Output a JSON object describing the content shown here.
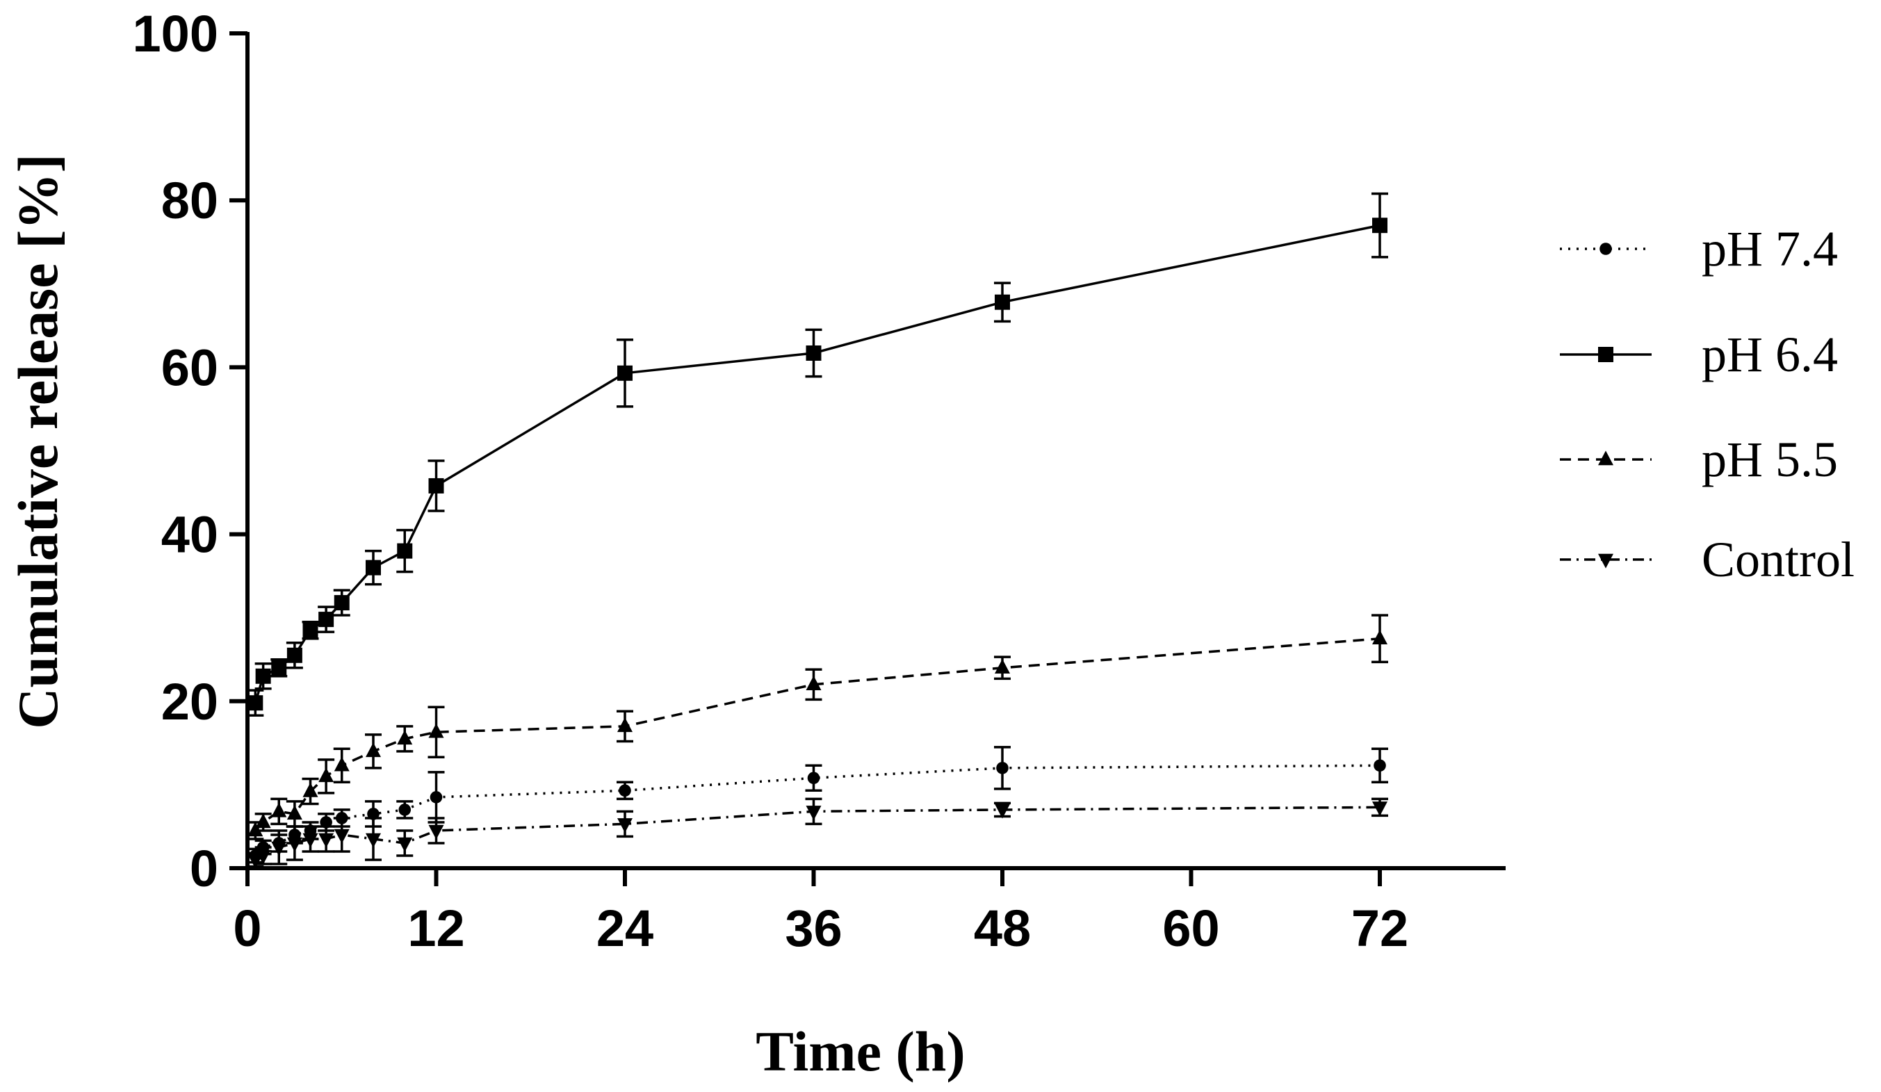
{
  "chart_data": {
    "type": "line",
    "title": "",
    "xlabel": "Time (h)",
    "ylabel": "Cumulative release [%]",
    "xlim": [
      0,
      80
    ],
    "ylim": [
      0,
      100
    ],
    "xticks": [
      0,
      12,
      24,
      36,
      48,
      60,
      72
    ],
    "yticks": [
      0,
      20,
      40,
      60,
      80,
      100
    ],
    "legend_position": "right",
    "series": [
      {
        "name": "pH 7.4",
        "marker": "circle",
        "dash": "dotted",
        "x": [
          0.5,
          1,
          2,
          3,
          4,
          5,
          6,
          8,
          10,
          12,
          24,
          36,
          48,
          72
        ],
        "y": [
          1.5,
          2.5,
          3.0,
          4.0,
          4.5,
          5.5,
          6.0,
          6.5,
          7.0,
          8.5,
          9.3,
          10.8,
          12.0,
          12.3
        ],
        "err": [
          0.8,
          0.8,
          1.0,
          1.0,
          1.0,
          1.0,
          1.0,
          1.5,
          1.0,
          3.0,
          1.0,
          1.5,
          2.5,
          2.0
        ]
      },
      {
        "name": "pH 6.4",
        "marker": "square",
        "dash": "solid",
        "x": [
          0.5,
          1,
          2,
          3,
          4,
          5,
          6,
          8,
          10,
          12,
          24,
          36,
          48,
          72
        ],
        "y": [
          19.8,
          23.0,
          24.0,
          25.5,
          28.5,
          29.8,
          31.8,
          36.0,
          38.0,
          45.8,
          59.3,
          61.7,
          67.8,
          77.0
        ],
        "err": [
          1.5,
          1.5,
          1.0,
          1.5,
          1.0,
          1.5,
          1.5,
          2.0,
          2.5,
          3.0,
          4.0,
          2.8,
          2.3,
          3.8
        ]
      },
      {
        "name": "pH 5.5",
        "marker": "triangle-up",
        "dash": "dashed",
        "x": [
          0.5,
          1,
          2,
          3,
          4,
          5,
          6,
          8,
          10,
          12,
          24,
          36,
          48,
          72
        ],
        "y": [
          4.5,
          5.5,
          6.8,
          6.5,
          9.2,
          11.0,
          12.3,
          14.0,
          15.5,
          16.3,
          17.0,
          22.0,
          24.0,
          27.5
        ],
        "err": [
          1.0,
          1.0,
          1.5,
          1.5,
          1.5,
          2.0,
          2.0,
          2.0,
          1.5,
          3.0,
          1.8,
          1.8,
          1.3,
          2.8
        ]
      },
      {
        "name": "Control",
        "marker": "triangle-down",
        "dash": "dashdot",
        "x": [
          0.5,
          1,
          2,
          3,
          4,
          5,
          6,
          8,
          10,
          12,
          24,
          36,
          48,
          72
        ],
        "y": [
          1.0,
          1.5,
          2.5,
          3.0,
          3.5,
          3.5,
          4.0,
          3.5,
          3.0,
          4.5,
          5.3,
          6.8,
          7.0,
          7.3
        ],
        "err": [
          0.8,
          1.0,
          2.0,
          2.0,
          1.5,
          1.5,
          2.0,
          2.5,
          1.5,
          1.5,
          1.5,
          1.5,
          0.8,
          1.0
        ]
      }
    ]
  }
}
